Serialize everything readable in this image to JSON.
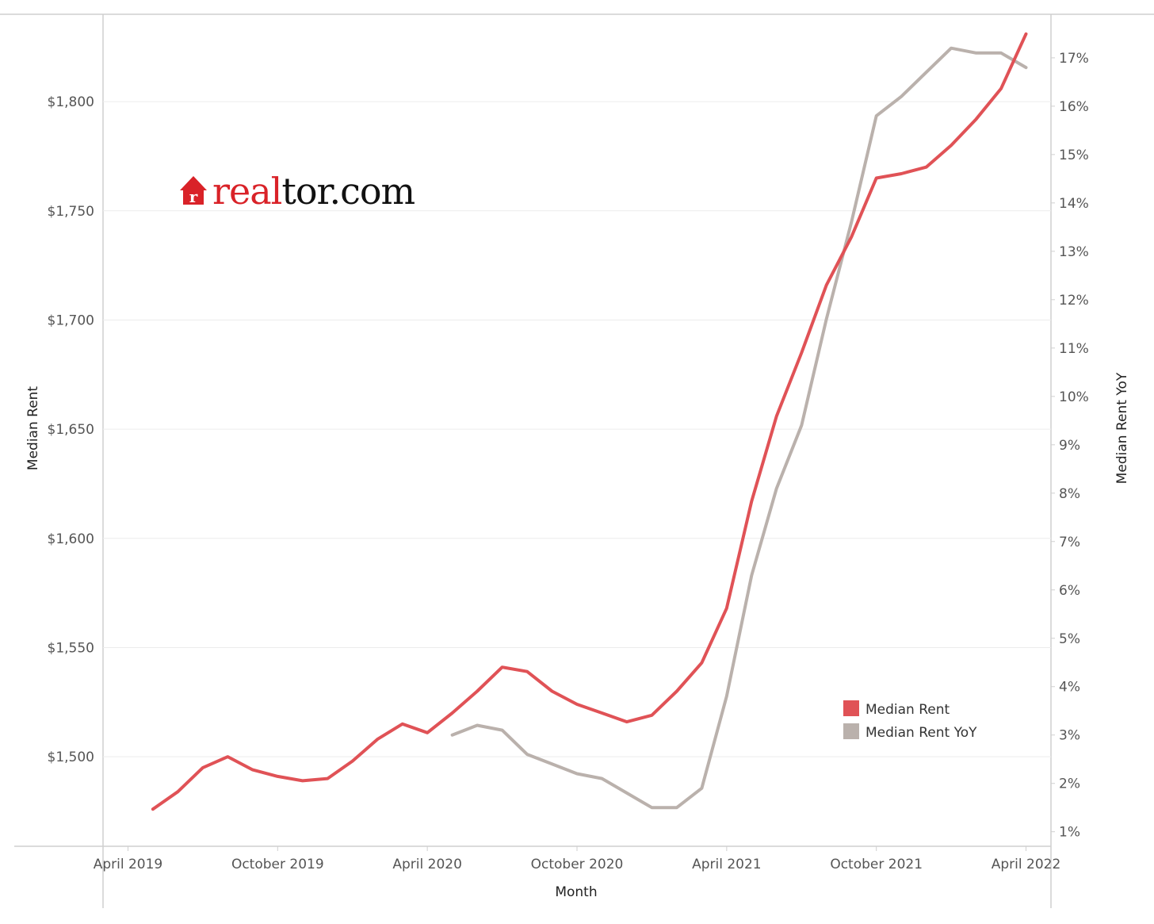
{
  "chart_data": {
    "type": "line",
    "x_axis": {
      "title": "Month",
      "tick_labels": [
        "April 2019",
        "October 2019",
        "April 2020",
        "October 2020",
        "April 2021",
        "October 2021",
        "April 2022"
      ],
      "range": [
        "2019-03",
        "2022-05"
      ]
    },
    "y_left": {
      "title": "Median Rent",
      "ticks": [
        1500,
        1550,
        1600,
        1650,
        1700,
        1750,
        1800
      ],
      "tick_labels": [
        "$1,500",
        "$1,550",
        "$1,600",
        "$1,650",
        "$1,700",
        "$1,750",
        "$1,800"
      ],
      "range": [
        1459,
        1840
      ]
    },
    "y_right": {
      "title": "Median Rent YoY",
      "ticks": [
        1,
        2,
        3,
        4,
        5,
        6,
        7,
        8,
        9,
        10,
        11,
        12,
        13,
        14,
        15,
        16,
        17
      ],
      "tick_labels": [
        "1%",
        "2%",
        "3%",
        "4%",
        "5%",
        "6%",
        "7%",
        "8%",
        "9%",
        "10%",
        "11%",
        "12%",
        "13%",
        "14%",
        "15%",
        "16%",
        "17%"
      ],
      "range": [
        0.7,
        17.9
      ]
    },
    "grid": "horizontal",
    "legend_position": "bottom-right",
    "series": [
      {
        "name": "Median Rent",
        "axis": "left",
        "color": "#e05256",
        "x": [
          "2019-05",
          "2019-06",
          "2019-07",
          "2019-08",
          "2019-09",
          "2019-10",
          "2019-11",
          "2019-12",
          "2020-01",
          "2020-02",
          "2020-03",
          "2020-04",
          "2020-05",
          "2020-06",
          "2020-07",
          "2020-08",
          "2020-09",
          "2020-10",
          "2020-11",
          "2020-12",
          "2021-01",
          "2021-02",
          "2021-03",
          "2021-04",
          "2021-05",
          "2021-06",
          "2021-07",
          "2021-08",
          "2021-09",
          "2021-10",
          "2021-11",
          "2021-12",
          "2022-01",
          "2022-02",
          "2022-03",
          "2022-04"
        ],
        "values": [
          1476,
          1484,
          1495,
          1500,
          1494,
          1491,
          1489,
          1490,
          1498,
          1508,
          1515,
          1511,
          1520,
          1530,
          1541,
          1539,
          1530,
          1524,
          1520,
          1516,
          1519,
          1530,
          1543,
          1568,
          1617,
          1656,
          1685,
          1716,
          1738,
          1765,
          1767,
          1770,
          1780,
          1792,
          1806,
          1831
        ]
      },
      {
        "name": "Median Rent YoY",
        "axis": "right",
        "color": "#bab1ac",
        "x": [
          "2020-05",
          "2020-06",
          "2020-07",
          "2020-08",
          "2020-09",
          "2020-10",
          "2020-11",
          "2020-12",
          "2021-01",
          "2021-02",
          "2021-03",
          "2021-04",
          "2021-05",
          "2021-06",
          "2021-07",
          "2021-08",
          "2021-09",
          "2021-10",
          "2021-11",
          "2021-12",
          "2022-01",
          "2022-02",
          "2022-03",
          "2022-04"
        ],
        "values": [
          3.0,
          3.2,
          3.1,
          2.6,
          2.4,
          2.2,
          2.1,
          1.8,
          1.5,
          1.5,
          1.9,
          3.8,
          6.3,
          8.1,
          9.4,
          11.6,
          13.6,
          15.8,
          16.2,
          16.7,
          17.2,
          17.1,
          17.1,
          16.8
        ]
      }
    ]
  },
  "logo": {
    "text_red": "real",
    "text_black": "tor.com",
    "icon": "house-r-icon"
  }
}
